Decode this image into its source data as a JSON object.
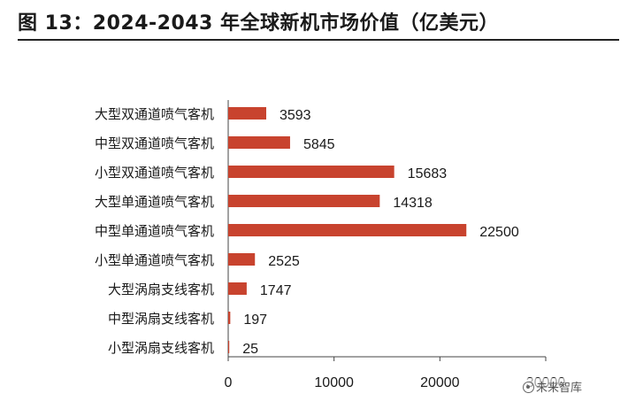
{
  "title": "图 13：2024-2043 年全球新机市场价值（亿美元）",
  "watermark": "未来智库",
  "colors": {
    "bar": "#c8432e",
    "axis": "#444444",
    "text": "#1a1a1a"
  },
  "chart_data": {
    "type": "bar",
    "orientation": "horizontal",
    "categories": [
      "大型双通道喷气客机",
      "中型双通道喷气客机",
      "小型双通道喷气客机",
      "大型单通道喷气客机",
      "中型单通道喷气客机",
      "小型单通道喷气客机",
      "大型涡扇支线客机",
      "中型涡扇支线客机",
      "小型涡扇支线客机"
    ],
    "values": [
      3593,
      5845,
      15683,
      14318,
      22500,
      2525,
      1747,
      197,
      25
    ],
    "data_labels": [
      "3593",
      "5845",
      "15683",
      "14318",
      "22500",
      "2525",
      "1747",
      "197",
      "25"
    ],
    "xlim": [
      0,
      30000
    ],
    "xticks": [
      "0",
      "10000",
      "20000",
      "30000"
    ],
    "grid": false,
    "legend": "none"
  }
}
